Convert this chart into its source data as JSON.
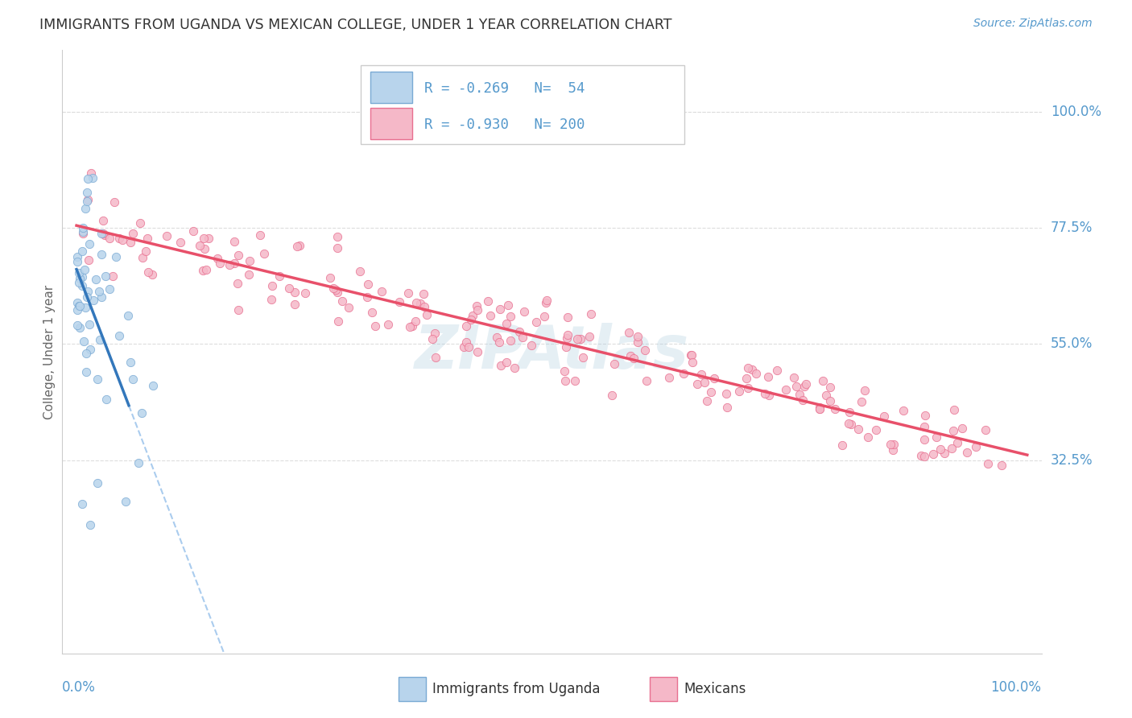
{
  "title": "IMMIGRANTS FROM UGANDA VS MEXICAN COLLEGE, UNDER 1 YEAR CORRELATION CHART",
  "source": "Source: ZipAtlas.com",
  "ylabel": "College, Under 1 year",
  "ytick_labels": [
    "100.0%",
    "77.5%",
    "55.0%",
    "32.5%"
  ],
  "ytick_values": [
    1.0,
    0.775,
    0.55,
    0.325
  ],
  "r_uganda": -0.269,
  "n_uganda": 54,
  "r_mexican": -0.93,
  "n_mexican": 200,
  "legend_label1": "Immigrants from Uganda",
  "legend_label2": "Mexicans",
  "watermark": "ZIPAtlas",
  "scatter_uganda_color": "#b8d4ec",
  "scatter_uganda_edge": "#7aaad4",
  "scatter_mexican_color": "#f5b8c8",
  "scatter_mexican_edge": "#e87090",
  "scatter_size": 55,
  "line_uganda_color": "#3377bb",
  "line_mexican_color": "#e8506a",
  "line_dashed_color": "#aaccee",
  "background_color": "#ffffff",
  "grid_color": "#dddddd",
  "title_color": "#333333",
  "axis_label_color": "#5599cc",
  "legend_box_color_1": "#b8d4ec",
  "legend_box_color_1_edge": "#7aaad4",
  "legend_box_color_2": "#f5b8c8",
  "legend_box_color_2_edge": "#e87090",
  "xlim": [
    -0.015,
    1.015
  ],
  "ylim": [
    -0.05,
    1.12
  ],
  "ug_line_x0": 0.0,
  "ug_line_y0": 0.695,
  "ug_line_slope": -4.8,
  "ug_line_solid_end": 0.055,
  "ug_line_dash_end": 0.44,
  "mx_line_x0": 0.0,
  "mx_line_y0": 0.78,
  "mx_line_x1": 1.0,
  "mx_line_y1": 0.335
}
